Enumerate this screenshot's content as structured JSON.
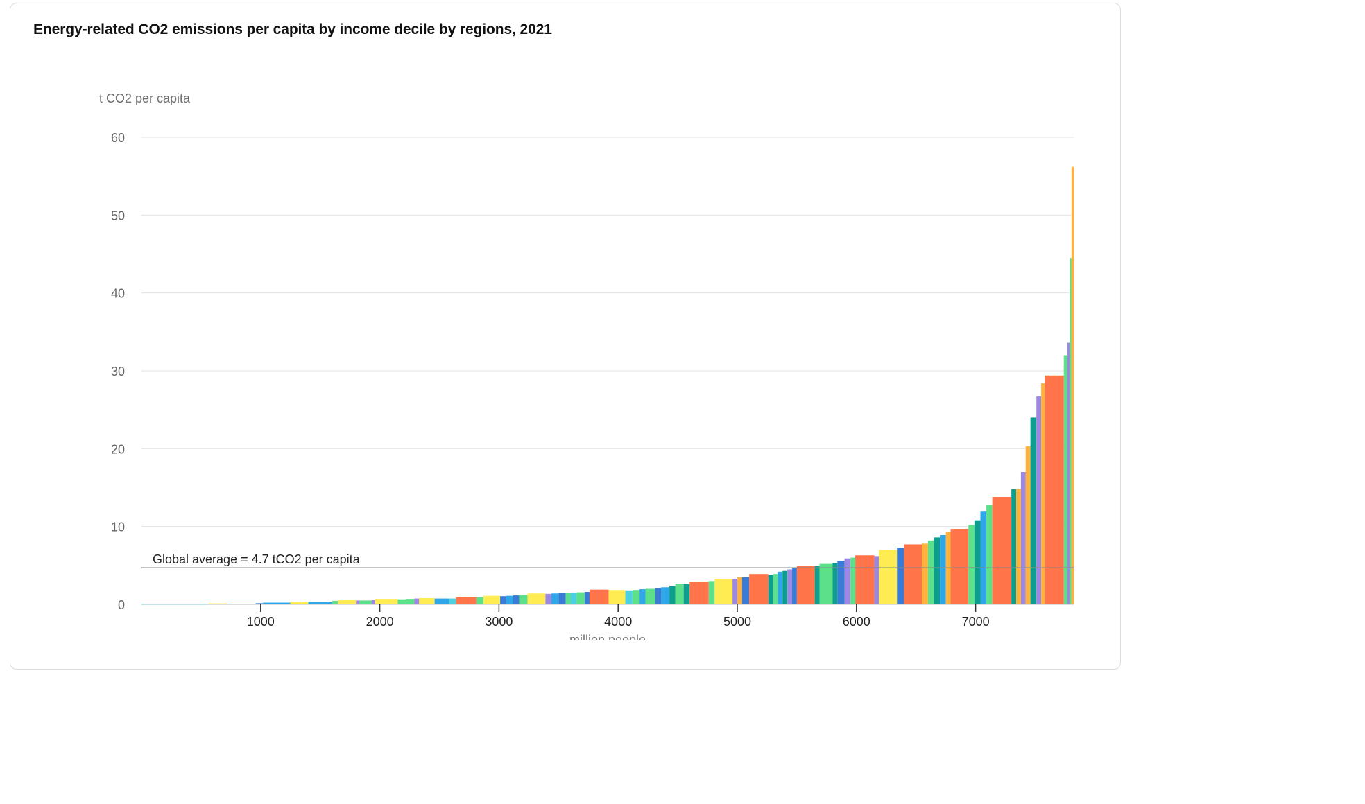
{
  "chart_data": {
    "type": "bar",
    "title": "Energy-related CO2 emissions per capita by income decile by regions, 2021",
    "ylabel": "t CO2 per capita",
    "xlabel": "million people",
    "ylim": [
      0,
      60
    ],
    "xlim": [
      0,
      7850
    ],
    "y_ticks": [
      "0",
      "10",
      "20",
      "30",
      "40",
      "50",
      "60"
    ],
    "x_ticks": [
      "1000",
      "2000",
      "3000",
      "4000",
      "5000",
      "6000",
      "7000"
    ],
    "grid": true,
    "annotation": {
      "label": "Global average = 4.7 tCO2 per capita",
      "value": 4.7
    },
    "series_colors": [
      "#4dd0e1",
      "#ffeb52",
      "#5de08a",
      "#9c88e0",
      "#2fa6e8",
      "#ff7549",
      "#0e9e8e",
      "#3a7bd5",
      "#ffb13d"
    ],
    "bars": [
      {
        "x0": 0,
        "x1": 560,
        "value": 0.05,
        "color": "#4dd0e1"
      },
      {
        "x0": 560,
        "x1": 720,
        "value": 0.12,
        "color": "#ffeb52"
      },
      {
        "x0": 720,
        "x1": 960,
        "value": 0.08,
        "color": "#4dd0e1"
      },
      {
        "x0": 960,
        "x1": 1020,
        "value": 0.15,
        "color": "#3a7bd5"
      },
      {
        "x0": 1020,
        "x1": 1250,
        "value": 0.22,
        "color": "#2fa6e8"
      },
      {
        "x0": 1250,
        "x1": 1400,
        "value": 0.3,
        "color": "#ffeb52"
      },
      {
        "x0": 1400,
        "x1": 1600,
        "value": 0.35,
        "color": "#2fa6e8"
      },
      {
        "x0": 1600,
        "x1": 1650,
        "value": 0.45,
        "color": "#5de08a"
      },
      {
        "x0": 1650,
        "x1": 1800,
        "value": 0.55,
        "color": "#ffeb52"
      },
      {
        "x0": 1800,
        "x1": 1830,
        "value": 0.5,
        "color": "#9c88e0"
      },
      {
        "x0": 1830,
        "x1": 1930,
        "value": 0.5,
        "color": "#5de08a"
      },
      {
        "x0": 1930,
        "x1": 1960,
        "value": 0.55,
        "color": "#9c88e0"
      },
      {
        "x0": 1960,
        "x1": 2150,
        "value": 0.7,
        "color": "#ffeb52"
      },
      {
        "x0": 2150,
        "x1": 2220,
        "value": 0.65,
        "color": "#5de08a"
      },
      {
        "x0": 2220,
        "x1": 2290,
        "value": 0.7,
        "color": "#5de08a"
      },
      {
        "x0": 2290,
        "x1": 2330,
        "value": 0.75,
        "color": "#9c88e0"
      },
      {
        "x0": 2330,
        "x1": 2460,
        "value": 0.8,
        "color": "#ffeb52"
      },
      {
        "x0": 2460,
        "x1": 2580,
        "value": 0.75,
        "color": "#2fa6e8"
      },
      {
        "x0": 2580,
        "x1": 2640,
        "value": 0.75,
        "color": "#4dd0e1"
      },
      {
        "x0": 2640,
        "x1": 2810,
        "value": 0.9,
        "color": "#ff7549"
      },
      {
        "x0": 2810,
        "x1": 2870,
        "value": 0.9,
        "color": "#5de08a"
      },
      {
        "x0": 2870,
        "x1": 3010,
        "value": 1.1,
        "color": "#ffeb52"
      },
      {
        "x0": 3010,
        "x1": 3060,
        "value": 1.05,
        "color": "#3a7bd5"
      },
      {
        "x0": 3060,
        "x1": 3120,
        "value": 1.1,
        "color": "#2fa6e8"
      },
      {
        "x0": 3120,
        "x1": 3170,
        "value": 1.15,
        "color": "#3a7bd5"
      },
      {
        "x0": 3170,
        "x1": 3240,
        "value": 1.2,
        "color": "#5de08a"
      },
      {
        "x0": 3240,
        "x1": 3390,
        "value": 1.4,
        "color": "#ffeb52"
      },
      {
        "x0": 3390,
        "x1": 3440,
        "value": 1.35,
        "color": "#9c88e0"
      },
      {
        "x0": 3440,
        "x1": 3500,
        "value": 1.4,
        "color": "#2fa6e8"
      },
      {
        "x0": 3500,
        "x1": 3560,
        "value": 1.45,
        "color": "#3a7bd5"
      },
      {
        "x0": 3560,
        "x1": 3600,
        "value": 1.45,
        "color": "#5de08a"
      },
      {
        "x0": 3600,
        "x1": 3650,
        "value": 1.5,
        "color": "#4dd0e1"
      },
      {
        "x0": 3650,
        "x1": 3720,
        "value": 1.55,
        "color": "#5de08a"
      },
      {
        "x0": 3720,
        "x1": 3760,
        "value": 1.6,
        "color": "#3a7bd5"
      },
      {
        "x0": 3760,
        "x1": 3920,
        "value": 1.9,
        "color": "#ff7549"
      },
      {
        "x0": 3920,
        "x1": 4060,
        "value": 1.85,
        "color": "#ffeb52"
      },
      {
        "x0": 4060,
        "x1": 4120,
        "value": 1.8,
        "color": "#4dd0e1"
      },
      {
        "x0": 4120,
        "x1": 4180,
        "value": 1.85,
        "color": "#5de08a"
      },
      {
        "x0": 4180,
        "x1": 4230,
        "value": 1.95,
        "color": "#2fa6e8"
      },
      {
        "x0": 4230,
        "x1": 4310,
        "value": 2.0,
        "color": "#5de08a"
      },
      {
        "x0": 4310,
        "x1": 4360,
        "value": 2.1,
        "color": "#3a7bd5"
      },
      {
        "x0": 4360,
        "x1": 4430,
        "value": 2.2,
        "color": "#2fa6e8"
      },
      {
        "x0": 4430,
        "x1": 4480,
        "value": 2.4,
        "color": "#0e9e8e"
      },
      {
        "x0": 4480,
        "x1": 4550,
        "value": 2.6,
        "color": "#5de08a"
      },
      {
        "x0": 4550,
        "x1": 4600,
        "value": 2.6,
        "color": "#0e9e8e"
      },
      {
        "x0": 4600,
        "x1": 4760,
        "value": 2.9,
        "color": "#ff7549"
      },
      {
        "x0": 4760,
        "x1": 4810,
        "value": 3.0,
        "color": "#5de08a"
      },
      {
        "x0": 4810,
        "x1": 4960,
        "value": 3.3,
        "color": "#ffeb52"
      },
      {
        "x0": 4960,
        "x1": 5000,
        "value": 3.3,
        "color": "#9c88e0"
      },
      {
        "x0": 5000,
        "x1": 5040,
        "value": 3.5,
        "color": "#ffb13d"
      },
      {
        "x0": 5040,
        "x1": 5100,
        "value": 3.5,
        "color": "#3a7bd5"
      },
      {
        "x0": 5100,
        "x1": 5260,
        "value": 3.9,
        "color": "#ff7549"
      },
      {
        "x0": 5260,
        "x1": 5300,
        "value": 3.8,
        "color": "#0e9e8e"
      },
      {
        "x0": 5300,
        "x1": 5340,
        "value": 3.9,
        "color": "#5de08a"
      },
      {
        "x0": 5340,
        "x1": 5380,
        "value": 4.2,
        "color": "#2fa6e8"
      },
      {
        "x0": 5380,
        "x1": 5420,
        "value": 4.3,
        "color": "#0e9e8e"
      },
      {
        "x0": 5420,
        "x1": 5460,
        "value": 4.5,
        "color": "#9c88e0"
      },
      {
        "x0": 5460,
        "x1": 5500,
        "value": 4.7,
        "color": "#3a7bd5"
      },
      {
        "x0": 5500,
        "x1": 5650,
        "value": 4.9,
        "color": "#ff7549"
      },
      {
        "x0": 5650,
        "x1": 5690,
        "value": 4.9,
        "color": "#0e9e8e"
      },
      {
        "x0": 5690,
        "x1": 5800,
        "value": 5.2,
        "color": "#5de08a"
      },
      {
        "x0": 5800,
        "x1": 5840,
        "value": 5.3,
        "color": "#0e9e8e"
      },
      {
        "x0": 5840,
        "x1": 5900,
        "value": 5.6,
        "color": "#3a7bd5"
      },
      {
        "x0": 5900,
        "x1": 5950,
        "value": 5.9,
        "color": "#9c88e0"
      },
      {
        "x0": 5950,
        "x1": 5990,
        "value": 6.0,
        "color": "#5de08a"
      },
      {
        "x0": 5990,
        "x1": 6150,
        "value": 6.3,
        "color": "#ff7549"
      },
      {
        "x0": 6150,
        "x1": 6190,
        "value": 6.2,
        "color": "#9c88e0"
      },
      {
        "x0": 6190,
        "x1": 6340,
        "value": 7.0,
        "color": "#ffeb52"
      },
      {
        "x0": 6340,
        "x1": 6400,
        "value": 7.3,
        "color": "#3a7bd5"
      },
      {
        "x0": 6400,
        "x1": 6550,
        "value": 7.7,
        "color": "#ff7549"
      },
      {
        "x0": 6550,
        "x1": 6600,
        "value": 7.8,
        "color": "#ffb13d"
      },
      {
        "x0": 6600,
        "x1": 6650,
        "value": 8.2,
        "color": "#5de08a"
      },
      {
        "x0": 6650,
        "x1": 6700,
        "value": 8.6,
        "color": "#0e9e8e"
      },
      {
        "x0": 6700,
        "x1": 6750,
        "value": 8.9,
        "color": "#2fa6e8"
      },
      {
        "x0": 6750,
        "x1": 6790,
        "value": 9.3,
        "color": "#ffb13d"
      },
      {
        "x0": 6790,
        "x1": 6940,
        "value": 9.7,
        "color": "#ff7549"
      },
      {
        "x0": 6940,
        "x1": 6990,
        "value": 10.2,
        "color": "#5de08a"
      },
      {
        "x0": 6990,
        "x1": 7040,
        "value": 10.8,
        "color": "#0e9e8e"
      },
      {
        "x0": 7040,
        "x1": 7090,
        "value": 12.0,
        "color": "#2fa6e8"
      },
      {
        "x0": 7090,
        "x1": 7140,
        "value": 12.8,
        "color": "#5de08a"
      },
      {
        "x0": 7140,
        "x1": 7300,
        "value": 13.8,
        "color": "#ff7549"
      },
      {
        "x0": 7300,
        "x1": 7340,
        "value": 14.8,
        "color": "#0e9e8e"
      },
      {
        "x0": 7340,
        "x1": 7380,
        "value": 14.8,
        "color": "#ffb13d"
      },
      {
        "x0": 7380,
        "x1": 7420,
        "value": 17.0,
        "color": "#9c88e0"
      },
      {
        "x0": 7420,
        "x1": 7460,
        "value": 20.3,
        "color": "#ffb13d"
      },
      {
        "x0": 7460,
        "x1": 7510,
        "value": 24.0,
        "color": "#0e9e8e"
      },
      {
        "x0": 7510,
        "x1": 7550,
        "value": 26.7,
        "color": "#9c88e0"
      },
      {
        "x0": 7550,
        "x1": 7580,
        "value": 28.4,
        "color": "#ffb13d"
      },
      {
        "x0": 7580,
        "x1": 7740,
        "value": 29.4,
        "color": "#ff7549"
      },
      {
        "x0": 7740,
        "x1": 7770,
        "value": 32.0,
        "color": "#5de08a"
      },
      {
        "x0": 7770,
        "x1": 7790,
        "value": 33.6,
        "color": "#9c88e0"
      },
      {
        "x0": 7790,
        "x1": 7805,
        "value": 44.5,
        "color": "#5de08a"
      },
      {
        "x0": 7805,
        "x1": 7825,
        "value": 56.2,
        "color": "#ffb13d"
      }
    ]
  }
}
